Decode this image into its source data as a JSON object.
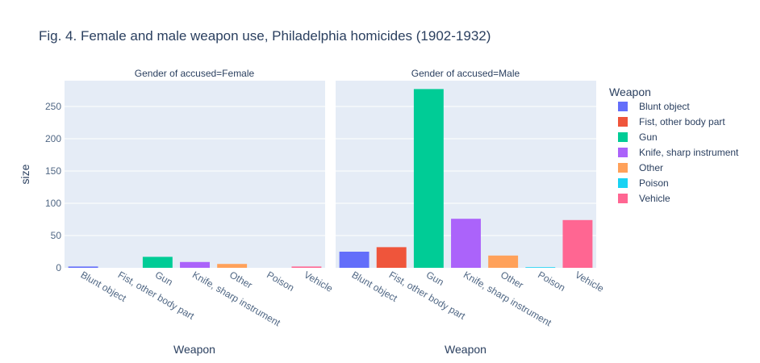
{
  "chart_data": {
    "type": "bar",
    "title": "Fig. 4. Female and male weapon use, Philadelphia homicides (1902-1932)",
    "ylabel": "size",
    "xlabel": "Weapon",
    "ylim": [
      0,
      290
    ],
    "yticks": [
      0,
      50,
      100,
      150,
      200,
      250
    ],
    "categories": [
      "Blunt object",
      "Fist, other body part",
      "Gun",
      "Knife, sharp instrument",
      "Other",
      "Poison",
      "Vehicle"
    ],
    "legend": {
      "title": "Weapon",
      "position": "right",
      "entries": [
        "Blunt object",
        "Fist, other body part",
        "Gun",
        "Knife, sharp instrument",
        "Other",
        "Poison",
        "Vehicle"
      ]
    },
    "colors": [
      "#636efa",
      "#ef553b",
      "#00cc96",
      "#ab63fa",
      "#ffa15a",
      "#19d3f3",
      "#ff6692"
    ],
    "panels": [
      {
        "facet_label": "Gender of accused=Female",
        "values": [
          2,
          0,
          17,
          9,
          6,
          0,
          2
        ]
      },
      {
        "facet_label": "Gender of accused=Male",
        "values": [
          25,
          32,
          277,
          76,
          19,
          1,
          74
        ]
      }
    ],
    "grid": true,
    "background": "#e5ecf6"
  }
}
